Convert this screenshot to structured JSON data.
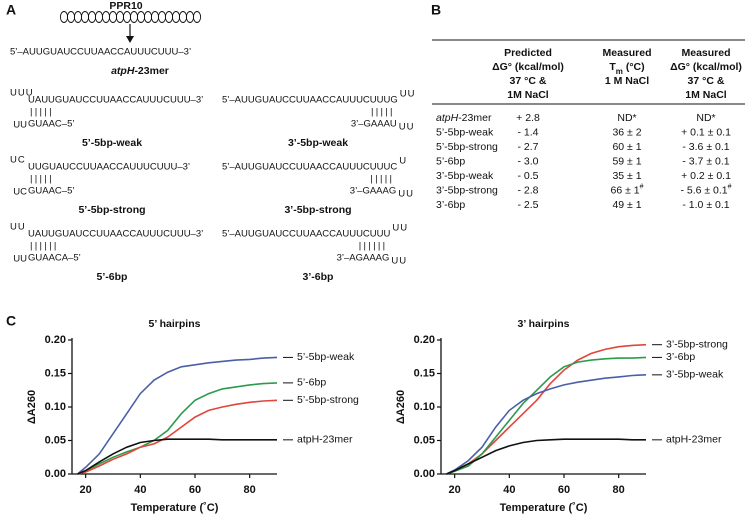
{
  "panel_a": {
    "label": "A",
    "protein": "PPR10",
    "target_seq": "5’–AUUGUAUCCUUAACCAUUUCUUU–3’",
    "target_name": [
      "atpH",
      "-23mer"
    ],
    "hairpins": [
      {
        "top": "UAUUGUAUCCUUAACCAUUUCUUU–3’",
        "loop_top": "UUU",
        "loop_bottom": "UU",
        "bars": "|||||",
        "bottom": "GUAAC–5’",
        "name": "5’-5bp-weak",
        "color": "#3b4fa0"
      },
      {
        "top": "5’–AUUGUAUCCUUAACCAUUUCUUUG",
        "loop_top": "UU",
        "loop_bottom": "UU",
        "bars": "|||||",
        "bottom": "3’–GAAAU",
        "name": "3’-5bp-weak",
        "color": "#3b4fa0"
      },
      {
        "top": "UUGUAUCCUUAACCAUUUCUUU–3’",
        "loop_top": "UC",
        "loop_bottom": "UC",
        "bars": "|||||",
        "bottom": "GUAAC–5’",
        "name": "5’-5bp-strong",
        "color": "#e0352b"
      },
      {
        "top": "5’–AUUGUAUCCUUAACCAUUUCUUUC",
        "loop_top": "U",
        "loop_bottom": "UU",
        "bars": "|||||",
        "bottom": "3’–GAAAG",
        "name": "3’-5bp-strong",
        "color": "#e0352b"
      },
      {
        "top": "UAUUGUAUCCUUAACCAUUUCUUU–3’",
        "loop_top": "UU",
        "loop_bottom": "UU",
        "bars": "||||||",
        "bottom": "GUAACA–5’",
        "name": "5’-6bp",
        "color": "#1fa34a"
      },
      {
        "top": "5’–AUUGUAUCCUUAACCAUUUCUUU",
        "loop_top": "UU",
        "loop_bottom": "UU",
        "bars": "||||||",
        "bottom": "3’–AGAAAG",
        "name": "3’-6bp",
        "color": "#1fa34a"
      }
    ]
  },
  "panel_b": {
    "label": "B",
    "headers": [
      [
        "Predicted",
        "ΔG° (kcal/mol)",
        "37 °C &",
        "1M NaCl"
      ],
      [
        "Measured",
        [
          "T",
          "m",
          " (°C)"
        ],
        "1 M NaCl"
      ],
      [
        "Measured",
        "ΔG° (kcal/mol)",
        "37 °C &",
        "1M NaCl"
      ]
    ],
    "rows": [
      {
        "label": [
          "atpH",
          "-23mer"
        ],
        "cells": [
          [
            "+ 2.8"
          ],
          [
            "ND*"
          ],
          [
            "ND*"
          ]
        ]
      },
      {
        "label": [
          "5’-5bp-weak"
        ],
        "cells": [
          [
            "- 1.4"
          ],
          [
            "36 ± 2"
          ],
          [
            "+ 0.1 ± 0.1"
          ]
        ]
      },
      {
        "label": [
          "5’-5bp-strong"
        ],
        "cells": [
          [
            "- 2.7"
          ],
          [
            "60 ± 1"
          ],
          [
            "- 3.6 ± 0.1"
          ]
        ]
      },
      {
        "label": [
          "5’-6bp"
        ],
        "cells": [
          [
            "- 3.0"
          ],
          [
            "59 ± 1"
          ],
          [
            "- 3.7 ± 0.1"
          ]
        ]
      },
      {
        "label": [
          "3’-5bp-weak"
        ],
        "cells": [
          [
            "- 0.5"
          ],
          [
            "35 ± 1"
          ],
          [
            "+ 0.2 ± 0.1"
          ]
        ]
      },
      {
        "label": [
          "3’-5bp-strong"
        ],
        "cells": [
          [
            "- 2.8"
          ],
          [
            "66 ± 1",
            "#"
          ],
          [
            "- 5.6 ± 0.1",
            "#"
          ]
        ]
      },
      {
        "label": [
          "3’-6bp"
        ],
        "cells": [
          [
            "- 2.5"
          ],
          [
            "49 ± 1"
          ],
          [
            "- 1.0 ± 0.1"
          ]
        ]
      }
    ]
  },
  "panel_c_label": "C",
  "chart_data": [
    {
      "type": "line",
      "title": "5’ hairpins",
      "xlabel": "Temperature (˚C)",
      "ylabel": "ΔA260",
      "xlim": [
        15,
        90
      ],
      "ylim": [
        0,
        0.2
      ],
      "xticks": [
        20,
        40,
        60,
        80
      ],
      "yticks": [
        {
          "value": 0,
          "label": "0.00"
        },
        {
          "value": 0.05,
          "label": "0.05"
        },
        {
          "value": 0.1,
          "label": "0.10"
        },
        {
          "value": 0.15,
          "label": "0.15"
        },
        {
          "value": 0.2,
          "label": "0.20"
        }
      ],
      "x": [
        17,
        20,
        25,
        30,
        35,
        40,
        45,
        50,
        55,
        60,
        65,
        70,
        75,
        80,
        85,
        90
      ],
      "series": [
        {
          "name": "5’-5bp-weak",
          "color": "#4a5fa8",
          "values": [
            0,
            0.01,
            0.03,
            0.06,
            0.09,
            0.12,
            0.14,
            0.152,
            0.16,
            0.163,
            0.166,
            0.168,
            0.17,
            0.171,
            0.173,
            0.174
          ]
        },
        {
          "name": "5’-6bp",
          "color": "#2e9a4c",
          "values": [
            0,
            0.005,
            0.015,
            0.025,
            0.033,
            0.04,
            0.05,
            0.065,
            0.09,
            0.11,
            0.12,
            0.127,
            0.13,
            0.133,
            0.135,
            0.136
          ]
        },
        {
          "name": "5’-5bp-strong",
          "color": "#e0463a",
          "values": [
            0,
            0.003,
            0.012,
            0.022,
            0.03,
            0.04,
            0.045,
            0.055,
            0.07,
            0.085,
            0.095,
            0.1,
            0.104,
            0.107,
            0.109,
            0.11
          ]
        },
        {
          "name": "atpH-23mer",
          "color": "#111111",
          "values": [
            0,
            0.005,
            0.018,
            0.03,
            0.04,
            0.047,
            0.05,
            0.052,
            0.052,
            0.052,
            0.052,
            0.051,
            0.051,
            0.051,
            0.051,
            0.051
          ]
        }
      ]
    },
    {
      "type": "line",
      "title": "3’ hairpins",
      "xlabel": "Temperature (˚C)",
      "ylabel": "ΔA260",
      "xlim": [
        15,
        90
      ],
      "ylim": [
        0,
        0.2
      ],
      "xticks": [
        20,
        40,
        60,
        80
      ],
      "yticks": [
        {
          "value": 0,
          "label": "0.00"
        },
        {
          "value": 0.05,
          "label": "0.05"
        },
        {
          "value": 0.1,
          "label": "0.10"
        },
        {
          "value": 0.15,
          "label": "0.15"
        },
        {
          "value": 0.2,
          "label": "0.20"
        }
      ],
      "x": [
        17,
        20,
        25,
        30,
        35,
        40,
        45,
        50,
        55,
        60,
        65,
        70,
        75,
        80,
        85,
        90
      ],
      "series": [
        {
          "name": "3’-5bp-strong",
          "color": "#e0463a",
          "values": [
            0,
            0.005,
            0.015,
            0.03,
            0.05,
            0.07,
            0.09,
            0.11,
            0.135,
            0.155,
            0.17,
            0.18,
            0.186,
            0.19,
            0.192,
            0.193
          ]
        },
        {
          "name": "3’-6bp",
          "color": "#2e9a4c",
          "values": [
            0,
            0.004,
            0.012,
            0.03,
            0.055,
            0.08,
            0.105,
            0.125,
            0.145,
            0.16,
            0.167,
            0.17,
            0.172,
            0.173,
            0.173,
            0.174
          ]
        },
        {
          "name": "3’-5bp-weak",
          "color": "#4a5fa8",
          "values": [
            0,
            0.006,
            0.02,
            0.04,
            0.07,
            0.095,
            0.11,
            0.12,
            0.127,
            0.133,
            0.137,
            0.14,
            0.143,
            0.145,
            0.147,
            0.148
          ]
        },
        {
          "name": "atpH-23mer",
          "color": "#111111",
          "values": [
            0,
            0.005,
            0.015,
            0.025,
            0.035,
            0.042,
            0.047,
            0.05,
            0.051,
            0.052,
            0.052,
            0.052,
            0.052,
            0.052,
            0.051,
            0.051
          ]
        }
      ]
    }
  ]
}
